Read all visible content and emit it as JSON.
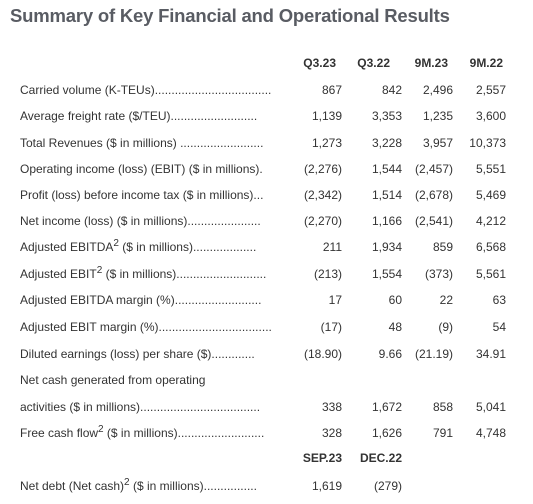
{
  "title": "Summary of Key Financial and Operational Results",
  "headers": [
    "Q3.23",
    "Q3.22",
    "9M.23",
    "9M.22"
  ],
  "rows": [
    {
      "label": "Carried volume (K-TEUs)",
      "dots": "...................................",
      "sup": "",
      "after": "",
      "values": [
        "867",
        "842",
        "2,496",
        "2,557"
      ]
    },
    {
      "label": "Average freight rate ($/TEU)",
      "dots": "..........................",
      "sup": "",
      "after": "",
      "values": [
        "1,139",
        "3,353",
        "1,235",
        "3,600"
      ]
    },
    {
      "label": "Total Revenues ($ in millions)",
      "dots": " .........................",
      "sup": "",
      "after": "",
      "values": [
        "1,273",
        "3,228",
        "3,957",
        "10,373"
      ]
    },
    {
      "label": "Operating income (loss) (EBIT) ($ in millions).",
      "dots": "",
      "sup": "",
      "after": "",
      "values": [
        "(2,276)",
        "1,544",
        "(2,457)",
        "5,551"
      ]
    },
    {
      "label": "Profit (loss) before income tax ($ in millions)",
      "dots": "...",
      "sup": "",
      "after": "",
      "values": [
        "(2,342)",
        "1,514",
        "(2,678)",
        "5,469"
      ]
    },
    {
      "label": "Net income (loss) ($ in millions)",
      "dots": "......................",
      "sup": "",
      "after": "",
      "values": [
        "(2,270)",
        "1,166",
        "(2,541)",
        "4,212"
      ]
    },
    {
      "label": "Adjusted EBITDA",
      "dots": "...................",
      "sup": "2",
      "after": " ($ in millions)",
      "values": [
        "211",
        "1,934",
        "859",
        "6,568"
      ]
    },
    {
      "label": "Adjusted EBIT",
      "dots": "...........................",
      "sup": "2",
      "after": " ($ in millions)",
      "values": [
        "(213)",
        "1,554",
        "(373)",
        "5,561"
      ]
    },
    {
      "label": "Adjusted EBITDA margin (%)",
      "dots": "..........................",
      "sup": "",
      "after": "",
      "values": [
        "17",
        "60",
        "22",
        "63"
      ]
    },
    {
      "label": "Adjusted EBIT margin (%)",
      "dots": "..................................",
      "sup": "",
      "after": "",
      "values": [
        "(17)",
        "48",
        "(9)",
        "54"
      ]
    },
    {
      "label": "Diluted earnings (loss) per share ($)",
      "dots": ".............",
      "sup": "",
      "after": "",
      "values": [
        "(18.90)",
        "9.66",
        "(21.19)",
        "34.91"
      ]
    },
    {
      "label": "Net cash generated from operating",
      "dots": "",
      "sup": "",
      "after": "",
      "values": [
        "",
        "",
        "",
        ""
      ]
    },
    {
      "label": "activities ($ in millions)",
      "dots": "....................................",
      "sup": "",
      "after": "",
      "values": [
        "338",
        "1,672",
        "858",
        "5,041"
      ]
    },
    {
      "label": "Free cash flow",
      "dots": "..........................",
      "sup": "2",
      "after": " ($ in millions)",
      "values": [
        "328",
        "1,626",
        "791",
        "4,748"
      ]
    }
  ],
  "subheaders": [
    "SEP.23",
    "DEC.22"
  ],
  "net_debt": {
    "label": "Net debt (Net cash)",
    "sup": "2",
    "after": " ($ in millions)",
    "dots": "................",
    "values": [
      "1,619",
      "(279)"
    ]
  }
}
